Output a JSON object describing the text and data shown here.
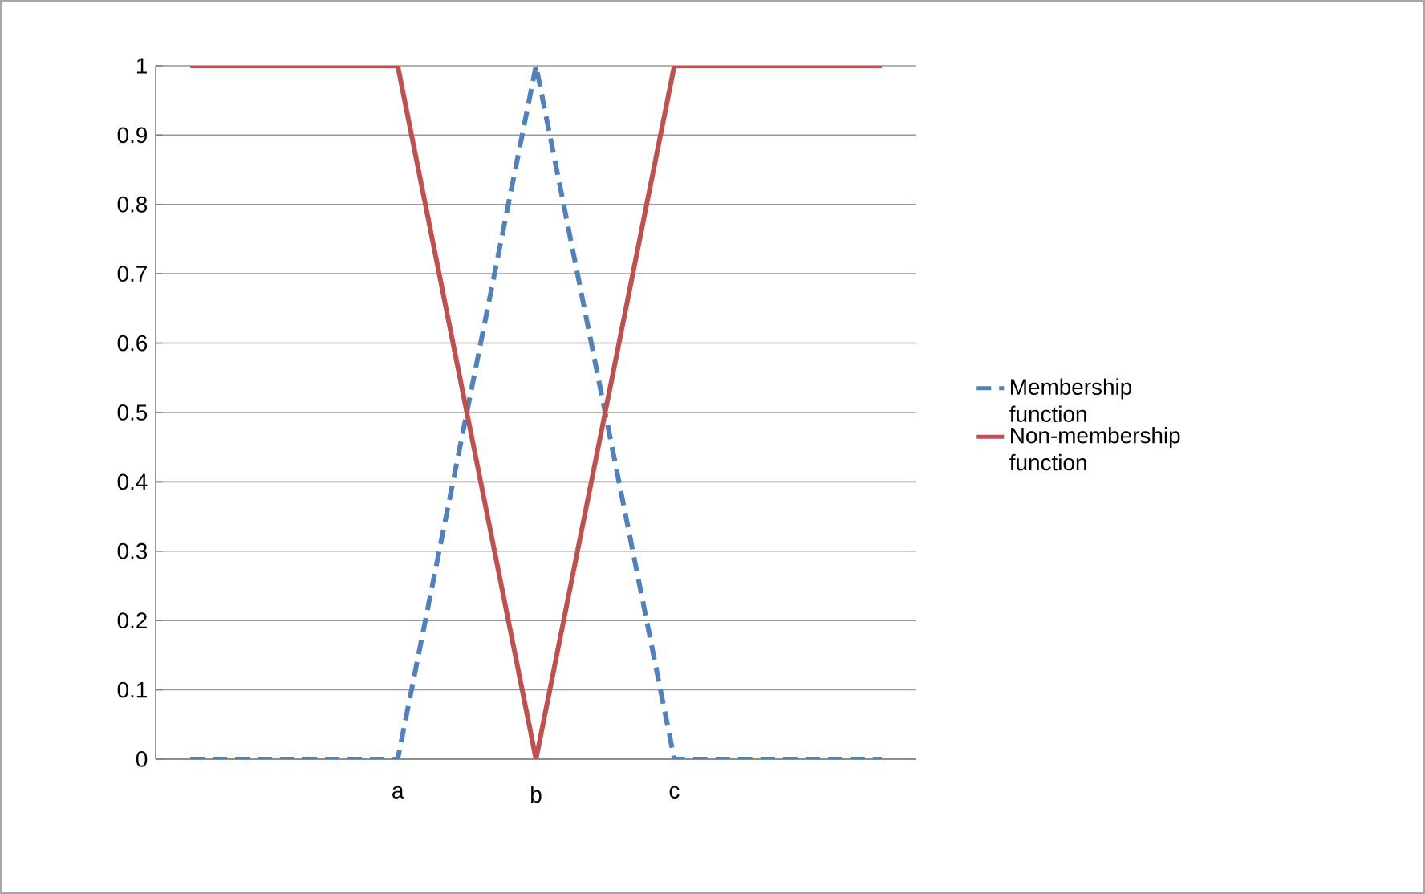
{
  "chart_data": {
    "type": "line",
    "categories": [
      null,
      null,
      null,
      "a",
      null,
      "b",
      null,
      "c",
      null,
      null,
      null
    ],
    "series": [
      {
        "name": "Membership function",
        "color": "#4f81bd",
        "line_style": "dashed",
        "values": [
          0,
          0,
          0,
          0,
          0.5,
          1,
          0.5,
          0,
          0,
          0,
          0
        ]
      },
      {
        "name": "Non-membership function",
        "color": "#c0504d",
        "line_style": "solid",
        "values": [
          1,
          1,
          1,
          1,
          0.5,
          0,
          0.5,
          1,
          1,
          1,
          1
        ]
      }
    ],
    "ylim": [
      0,
      1
    ],
    "yticks": [
      0,
      0.1,
      0.2,
      0.3,
      0.4,
      0.5,
      0.6,
      0.7,
      0.8,
      0.9,
      1
    ],
    "grid": "y",
    "legend": "right",
    "marker": "none"
  }
}
